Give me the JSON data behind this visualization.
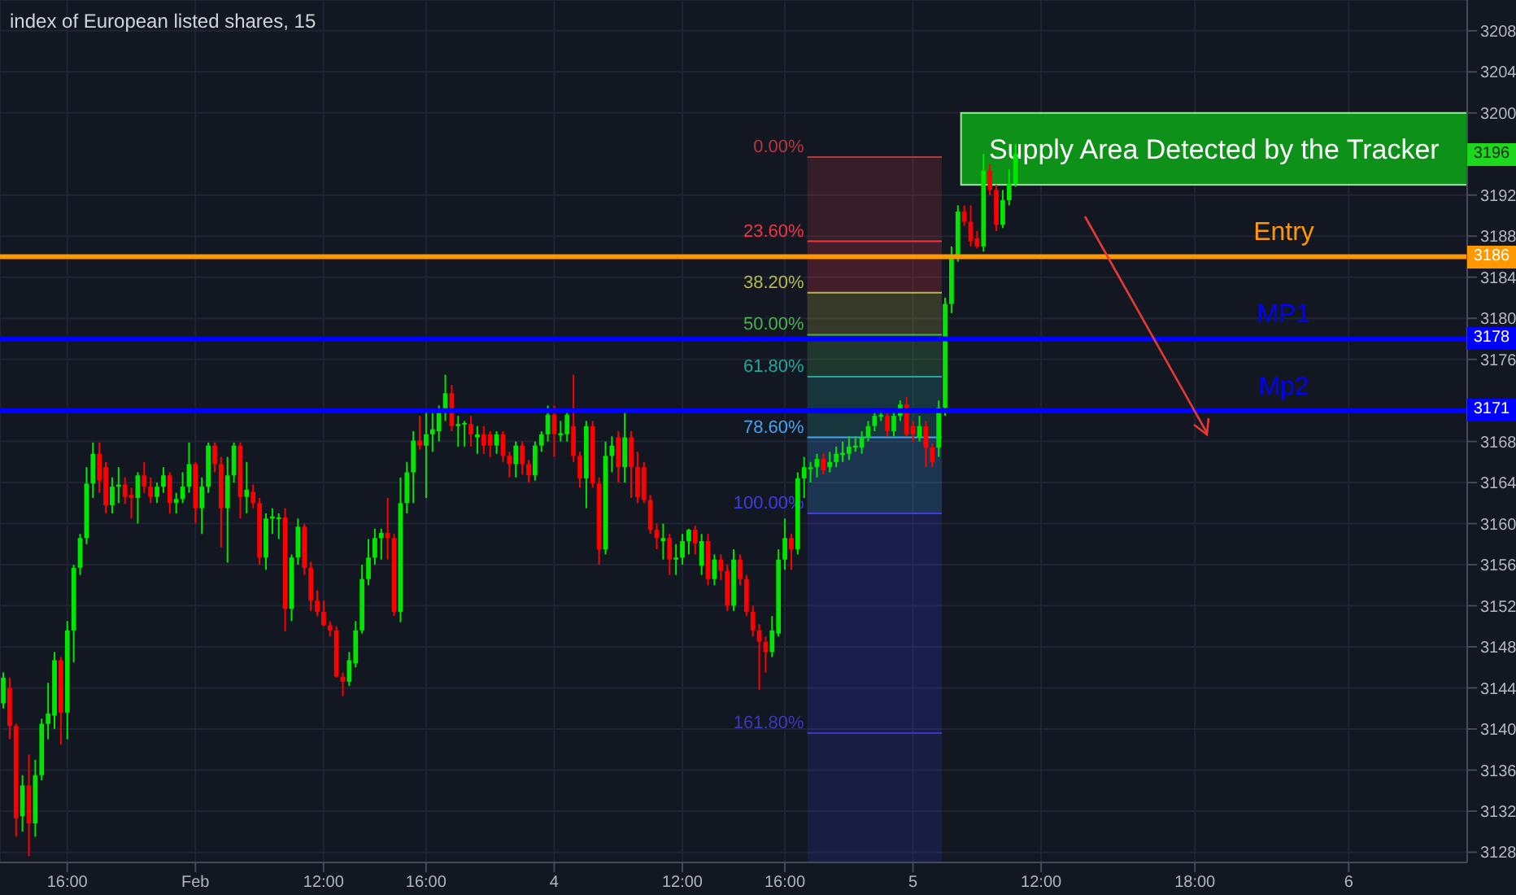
{
  "chart_data": {
    "type": "candlestick",
    "title": "index of European listed shares, 15",
    "categories": [
      null,
      null,
      null,
      null,
      null,
      null,
      null,
      null,
      null,
      null,
      "16:00",
      null,
      null,
      null,
      null,
      null,
      null,
      null,
      null,
      null,
      null,
      null,
      null,
      null,
      null,
      null,
      null,
      null,
      null,
      null,
      "Feb",
      null,
      null,
      null,
      null,
      null,
      null,
      null,
      null,
      null,
      null,
      null,
      null,
      null,
      null,
      null,
      null,
      null,
      null,
      null,
      "12:00",
      null,
      null,
      null,
      null,
      null,
      null,
      null,
      null,
      null,
      null,
      null,
      null,
      null,
      null,
      null,
      "16:00",
      null,
      null,
      null,
      null,
      null,
      null,
      null,
      null,
      null,
      null,
      null,
      null,
      null,
      null,
      null,
      null,
      null,
      null,
      null,
      "4",
      null,
      null,
      null,
      null,
      null,
      null,
      null,
      null,
      null,
      null,
      null,
      null,
      null,
      null,
      null,
      null,
      null,
      null,
      null,
      "12:00",
      null,
      null,
      null,
      null,
      null,
      null,
      null,
      null,
      null,
      null,
      null,
      null,
      null,
      null,
      null,
      "16:00",
      null,
      null,
      null,
      null,
      null,
      null,
      null,
      null,
      null,
      null,
      null,
      null,
      null,
      null,
      null,
      null,
      null,
      null,
      null,
      "5",
      null,
      null,
      null,
      null,
      null,
      null,
      null,
      null,
      null,
      null,
      null,
      null,
      null,
      null,
      null,
      null,
      null,
      null,
      null,
      "12:00",
      null,
      null,
      null,
      null,
      null,
      null,
      null,
      null,
      null,
      null,
      null,
      null,
      null,
      null,
      null,
      null,
      null,
      null,
      null,
      null,
      null,
      null,
      null,
      "18:00",
      null,
      null,
      null,
      null,
      null,
      null,
      null,
      null,
      null,
      null,
      null,
      null,
      null,
      null,
      null,
      null,
      null,
      null,
      null,
      null,
      null,
      null,
      null,
      "6",
      null,
      null,
      null,
      null,
      null,
      null,
      null,
      null,
      null,
      null,
      null,
      null,
      null,
      null,
      null,
      null,
      null,
      null
    ],
    "ohlc": [
      [
        3142.5,
        3145.5,
        3142,
        3145
      ],
      [
        3144,
        3145,
        3139,
        3140.3
      ],
      [
        3140.3,
        3140.5,
        3129.5,
        3131.3
      ],
      [
        3131.5,
        3135.5,
        3130,
        3134.5
      ],
      [
        3134.5,
        3137.5,
        3127.6,
        3130.8
      ],
      [
        3130.8,
        3137,
        3129.5,
        3135.5
      ],
      [
        3135.5,
        3141,
        3135,
        3140.5
      ],
      [
        3140.5,
        3144.5,
        3139,
        3141.5
      ],
      [
        3141.3,
        3147.5,
        3140,
        3146.7
      ],
      [
        3146.7,
        3147,
        3138.5,
        3141.6
      ],
      [
        3141.6,
        3150.5,
        3139,
        3149.6
      ],
      [
        3149.6,
        3156,
        3146.5,
        3155.7
      ],
      [
        3155.7,
        3159,
        3155,
        3158.6
      ],
      [
        3158.6,
        3165.5,
        3158,
        3163.9
      ],
      [
        3163.9,
        3167.9,
        3162.5,
        3166.8
      ],
      [
        3166.8,
        3167.9,
        3163,
        3164.2
      ],
      [
        3165.5,
        3166,
        3161,
        3161.8
      ],
      [
        3161.8,
        3164.5,
        3161,
        3163.6
      ],
      [
        3163.6,
        3165.5,
        3162,
        3163.8
      ],
      [
        3163.8,
        3164.5,
        3161.9,
        3162.6
      ],
      [
        3162.8,
        3163.5,
        3160.5,
        3162.5
      ],
      [
        3162.5,
        3165,
        3160,
        3164.7
      ],
      [
        3164.7,
        3166,
        3163,
        3163.6
      ],
      [
        3163.6,
        3164.5,
        3162,
        3162.6
      ],
      [
        3162.6,
        3164,
        3162,
        3163.6
      ],
      [
        3163.6,
        3165.5,
        3163,
        3164.7
      ],
      [
        3164.7,
        3165,
        3161,
        3162
      ],
      [
        3162,
        3163,
        3161,
        3162.4
      ],
      [
        3162.4,
        3165,
        3162,
        3163.6
      ],
      [
        3163.6,
        3167.9,
        3163,
        3165.8
      ],
      [
        3165.8,
        3166,
        3160,
        3161.5
      ],
      [
        3161.5,
        3164.5,
        3159,
        3163.6
      ],
      [
        3163.6,
        3167.9,
        3163,
        3167.6
      ],
      [
        3167.6,
        3167.9,
        3165,
        3165.8
      ],
      [
        3165.8,
        3166.5,
        3157.7,
        3161.5
      ],
      [
        3161.5,
        3166.5,
        3156.2,
        3164.7
      ],
      [
        3164.7,
        3167.9,
        3164,
        3167.6
      ],
      [
        3167.6,
        3167.9,
        3160.5,
        3162.6
      ],
      [
        3162.6,
        3166,
        3161,
        3163.3
      ],
      [
        3163.1,
        3163.8,
        3161.5,
        3162
      ],
      [
        3162,
        3162.5,
        3156,
        3156.7
      ],
      [
        3156.7,
        3161,
        3155.5,
        3160.5
      ],
      [
        3160.5,
        3161.5,
        3159,
        3160.7
      ],
      [
        3160.5,
        3161,
        3158.5,
        3160.6
      ],
      [
        3160.6,
        3161.5,
        3149.5,
        3151.7
      ],
      [
        3151.7,
        3157,
        3150.5,
        3156.7
      ],
      [
        3156.7,
        3160.5,
        3156,
        3159.7
      ],
      [
        3159.7,
        3160,
        3155,
        3155.7
      ],
      [
        3155.7,
        3156.3,
        3151.5,
        3152.5
      ],
      [
        3152.5,
        3153.5,
        3151,
        3151.4
      ],
      [
        3151.4,
        3152.5,
        3150,
        3150.1
      ],
      [
        3150.1,
        3150.5,
        3149,
        3149.6
      ],
      [
        3149.6,
        3150,
        3145,
        3145.1
      ],
      [
        3145.1,
        3145.5,
        3143.2,
        3144.6
      ],
      [
        3144.6,
        3147.5,
        3144.2,
        3146.7
      ],
      [
        3146.4,
        3150.5,
        3146,
        3149.6
      ],
      [
        3149.6,
        3156,
        3149.3,
        3154.6
      ],
      [
        3154.6,
        3158.5,
        3154,
        3156.7
      ],
      [
        3156.7,
        3159.5,
        3156,
        3158.6
      ],
      [
        3158.6,
        3159.5,
        3156.5,
        3159.1
      ],
      [
        3159.1,
        3162.5,
        3156.5,
        3158.6
      ],
      [
        3158.6,
        3159,
        3151,
        3151.4
      ],
      [
        3151.4,
        3164.5,
        3150.4,
        3162
      ],
      [
        3162,
        3166,
        3161,
        3165
      ],
      [
        3165,
        3169,
        3162,
        3168.1
      ],
      [
        3168.1,
        3170.5,
        3167.2,
        3167.6
      ],
      [
        3167.6,
        3171,
        3162.5,
        3168.7
      ],
      [
        3168.7,
        3171,
        3167,
        3169.2
      ],
      [
        3169,
        3171.5,
        3168,
        3170.8
      ],
      [
        3170.8,
        3174.5,
        3170,
        3172.7
      ],
      [
        3172.7,
        3173.5,
        3169,
        3169.5
      ],
      [
        3169.5,
        3170.5,
        3167.5,
        3169.7
      ],
      [
        3169.7,
        3170,
        3167.5,
        3169.8
      ],
      [
        3169.7,
        3170.5,
        3167.5,
        3168.7
      ],
      [
        3168.4,
        3169.5,
        3166.8,
        3168.7
      ],
      [
        3168.7,
        3169.5,
        3166.8,
        3167.6
      ],
      [
        3168.7,
        3169,
        3166.5,
        3167.6
      ],
      [
        3167.6,
        3169,
        3166.8,
        3168.7
      ],
      [
        3168.7,
        3169,
        3166,
        3166.6
      ],
      [
        3166.6,
        3167,
        3164.5,
        3165.8
      ],
      [
        3165.8,
        3168,
        3164.5,
        3167.6
      ],
      [
        3167.6,
        3168,
        3164.8,
        3165.8
      ],
      [
        3165.8,
        3166.2,
        3164,
        3164.7
      ],
      [
        3164.7,
        3168,
        3164.2,
        3167.6
      ],
      [
        3167.6,
        3169,
        3167,
        3168.7
      ],
      [
        3168.7,
        3171.5,
        3168,
        3170.6
      ],
      [
        3170.6,
        3171.5,
        3166.5,
        3168.7
      ],
      [
        3168.6,
        3170,
        3168,
        3168.8
      ],
      [
        3168.7,
        3171,
        3168,
        3170.6
      ],
      [
        3169.5,
        3174.5,
        3166,
        3166.6
      ],
      [
        3166.6,
        3167,
        3163.5,
        3164.4
      ],
      [
        3164.4,
        3170,
        3161.5,
        3169.5
      ],
      [
        3169.5,
        3170,
        3163.5,
        3163.9
      ],
      [
        3163.9,
        3164.5,
        3156,
        3157.5
      ],
      [
        3157.5,
        3168,
        3157,
        3166.6
      ],
      [
        3166.6,
        3168.5,
        3165,
        3167.6
      ],
      [
        3168.4,
        3169,
        3164,
        3165.5
      ],
      [
        3165.5,
        3171,
        3164,
        3168.4
      ],
      [
        3168.4,
        3169,
        3162.5,
        3165.5
      ],
      [
        3165.5,
        3167,
        3162,
        3162.6
      ],
      [
        3165.5,
        3166,
        3162,
        3162.3
      ],
      [
        3162.3,
        3162.8,
        3159,
        3159.4
      ],
      [
        3159.4,
        3160,
        3157.5,
        3158.6
      ],
      [
        3158.3,
        3160,
        3156.5,
        3158.6
      ],
      [
        3158.6,
        3159,
        3155,
        3156.5
      ],
      [
        3156.5,
        3158,
        3155,
        3156.7
      ],
      [
        3156.7,
        3159,
        3156,
        3158.3
      ],
      [
        3158.3,
        3159.5,
        3157,
        3159.4
      ],
      [
        3159.4,
        3159.8,
        3157,
        3158.1
      ],
      [
        3155.9,
        3159,
        3155,
        3158.3
      ],
      [
        3158.3,
        3159,
        3154,
        3154.6
      ],
      [
        3154.6,
        3157,
        3154,
        3156.5
      ],
      [
        3156.5,
        3157,
        3154.5,
        3155.4
      ],
      [
        3155.4,
        3156,
        3151.5,
        3152
      ],
      [
        3152,
        3157.5,
        3151.5,
        3156.5
      ],
      [
        3156.5,
        3157,
        3154,
        3154.6
      ],
      [
        3154.6,
        3155,
        3151,
        3151.4
      ],
      [
        3151.4,
        3152,
        3149,
        3149.6
      ],
      [
        3149.6,
        3150.2,
        3143.8,
        3148.5
      ],
      [
        3148.5,
        3149,
        3145.5,
        3147.5
      ],
      [
        3147.5,
        3151,
        3147,
        3149.6
      ],
      [
        3149.3,
        3157.5,
        3149,
        3156.5
      ],
      [
        3156.5,
        3160.5,
        3155.5,
        3158.6
      ],
      [
        3158.6,
        3159,
        3155.5,
        3157.5
      ],
      [
        3157.5,
        3165,
        3157,
        3164.4
      ],
      [
        3164.4,
        3166.5,
        3162.5,
        3165.5
      ],
      [
        3165.3,
        3166,
        3164,
        3165.5
      ],
      [
        3165.5,
        3166.8,
        3164.5,
        3166.3
      ],
      [
        3166.3,
        3166.8,
        3164.8,
        3165.2
      ],
      [
        3165.5,
        3167,
        3165,
        3166
      ],
      [
        3166,
        3167.5,
        3165.5,
        3166.8
      ],
      [
        3166.7,
        3168,
        3166,
        3166.9
      ],
      [
        3166.8,
        3168.5,
        3166.2,
        3167.5
      ],
      [
        3167.4,
        3168.5,
        3167,
        3167.6
      ],
      [
        3167.4,
        3169,
        3166.8,
        3168.4
      ],
      [
        3168.4,
        3170,
        3168,
        3169.5
      ],
      [
        3169.5,
        3171,
        3169,
        3170.5
      ],
      [
        3170.4,
        3171,
        3170,
        3170.6
      ],
      [
        3170.5,
        3171,
        3168.5,
        3169
      ],
      [
        3169,
        3171,
        3168.5,
        3170.5
      ],
      [
        3170.5,
        3172,
        3170,
        3171.6
      ],
      [
        3171.6,
        3172.3,
        3168.5,
        3168.7
      ],
      [
        3169.5,
        3170,
        3168,
        3168.7
      ],
      [
        3168.4,
        3170.5,
        3168,
        3169.5
      ],
      [
        3169.5,
        3170,
        3165.5,
        3167.4
      ],
      [
        3167.4,
        3167.8,
        3165.5,
        3166
      ],
      [
        3167.4,
        3172,
        3166.5,
        3171.3
      ],
      [
        3171.3,
        3182,
        3170.5,
        3181.4
      ],
      [
        3181.4,
        3187,
        3180.5,
        3186.2
      ],
      [
        3186.2,
        3191,
        3185.5,
        3190.4
      ],
      [
        3190.4,
        3191,
        3189,
        3189.4
      ],
      [
        3189.4,
        3191,
        3187,
        3187.5
      ],
      [
        3187.8,
        3188.5,
        3186.8,
        3187
      ],
      [
        3187,
        3196,
        3186.5,
        3194.4
      ],
      [
        3194.4,
        3195,
        3192,
        3192.5
      ],
      [
        3192.5,
        3193,
        3188.5,
        3189.1
      ],
      [
        3189.1,
        3192.5,
        3188.8,
        3191.5
      ],
      [
        3191.5,
        3194.5,
        3191,
        3193.1
      ],
      [
        3193.1,
        3197,
        3192.8,
        3196
      ],
      null,
      null,
      null,
      null,
      null,
      null,
      null,
      null,
      null,
      null,
      null,
      null,
      null,
      null,
      null,
      null,
      null,
      null,
      null,
      null,
      null,
      null,
      null,
      null,
      null,
      null,
      null,
      null,
      null,
      null,
      null,
      null,
      null,
      null,
      null,
      null,
      null,
      null,
      null,
      null,
      null,
      null,
      null,
      null,
      null,
      null,
      null,
      null,
      null,
      null,
      null,
      null,
      null,
      null,
      null,
      null,
      null,
      null,
      null,
      null,
      null,
      null,
      null,
      null,
      null,
      null,
      null,
      null,
      null,
      null
    ],
    "colors": [
      "#00e600",
      "#ff0000",
      "#ff0000",
      "#00e600",
      "#ff0000",
      "#00e600",
      "#00e600",
      "#00e600",
      "#00e600",
      "#ff0000",
      "#00e600",
      "#00e600",
      "#00e600",
      "#00e600",
      "#00e600",
      "#ff0000",
      "#ff0000",
      "#00e600",
      "#00e600",
      "#ff0000",
      "#ff0000",
      "#00e600",
      "#ff0000",
      "#ff0000",
      "#00e600",
      "#00e600",
      "#ff0000",
      "#00e600",
      "#00e600",
      "#00e600",
      "#ff0000",
      "#00e600",
      "#00e600",
      "#ff0000",
      "#ff0000",
      "#00e600",
      "#00e600",
      "#ff0000",
      "#00e600",
      "#ff0000",
      "#ff0000",
      "#00e600",
      "#00e600",
      "#00e600",
      "#ff0000",
      "#00e600",
      "#00e600",
      "#ff0000",
      "#ff0000",
      "#ff0000",
      "#ff0000",
      "#ff0000",
      "#ff0000",
      "#ff0000",
      "#00e600",
      "#00e600",
      "#00e600",
      "#00e600",
      "#00e600",
      "#00e600",
      "#ff0000",
      "#ff0000",
      "#00e600",
      "#00e600",
      "#00e600",
      "#ff0000",
      "#00e600",
      "#00e600",
      "#00e600",
      "#00e600",
      "#ff0000",
      "#00e600",
      "#00e600",
      "#ff0000",
      "#00e600",
      "#ff0000",
      "#ff0000",
      "#00e600",
      "#ff0000",
      "#ff0000",
      "#00e600",
      "#ff0000",
      "#ff0000",
      "#00e600",
      "#00e600",
      "#00e600",
      "#ff0000",
      "#00e600",
      "#00e600",
      "#ff0000",
      "#ff0000",
      "#00e600",
      "#ff0000",
      "#ff0000",
      "#00e600",
      "#00e600",
      "#ff0000",
      "#00e600",
      "#ff0000",
      "#ff0000",
      "#ff0000",
      "#ff0000",
      "#ff0000",
      "#00e600",
      "#ff0000",
      "#00e600",
      "#00e600",
      "#00e600",
      "#ff0000",
      "#00e600",
      "#ff0000",
      "#00e600",
      "#ff0000",
      "#ff0000",
      "#00e600",
      "#ff0000",
      "#ff0000",
      "#ff0000",
      "#ff0000",
      "#ff0000",
      "#00e600",
      "#00e600",
      "#00e600",
      "#ff0000",
      "#00e600",
      "#00e600",
      "#00e600",
      "#00e600",
      "#ff0000",
      "#00e600",
      "#00e600",
      "#00e600",
      "#00e600",
      "#00e600",
      "#00e600",
      "#00e600",
      "#00e600",
      "#00e600",
      "#ff0000",
      "#00e600",
      "#00e600",
      "#ff0000",
      "#ff0000",
      "#00e600",
      "#ff0000",
      "#ff0000",
      "#00e600",
      "#00e600",
      "#00e600",
      "#00e600",
      "#ff0000",
      "#ff0000",
      "#ff0000",
      "#00e600",
      "#ff0000",
      "#ff0000",
      "#00e600",
      "#00e600",
      "#00e600",
      null,
      null,
      null,
      null,
      null,
      null,
      null,
      null,
      null,
      null,
      null,
      null,
      null,
      null,
      null,
      null,
      null,
      null,
      null,
      null,
      null,
      null,
      null,
      null,
      null,
      null,
      null,
      null,
      null,
      null,
      null,
      null,
      null,
      null,
      null,
      null,
      null,
      null,
      null,
      null,
      null,
      null,
      null,
      null,
      null,
      null,
      null,
      null,
      null,
      null,
      null,
      null,
      null,
      null,
      null,
      null,
      null,
      null,
      null,
      null,
      null,
      null,
      null,
      null,
      null,
      null,
      null,
      null,
      null,
      null
    ],
    "ylim": [
      3127,
      3211
    ],
    "yticks": [
      3128,
      3132,
      3136,
      3140,
      3144,
      3148,
      3152,
      3156,
      3160,
      3164,
      3168,
      3176,
      3180,
      3184,
      3188,
      3192,
      3200,
      3204,
      3208
    ],
    "grid": true,
    "ref_lines": [
      {
        "axis": "y",
        "value": 3186,
        "label": "Entry",
        "color": "#ff9800"
      },
      {
        "axis": "y",
        "value": 3178,
        "label": "MP1",
        "color": "#0000ff"
      },
      {
        "axis": "y",
        "value": 3171,
        "label": "Mp2",
        "color": "#0000ff"
      }
    ],
    "bands": [
      {
        "axis": "y",
        "from": 3193,
        "to": 3200,
        "label": "Supply Area Detected by the Tracker",
        "color": "#0e9e17"
      },
      {
        "axis": "y",
        "from": 3187.5,
        "to": 3195.7,
        "label": "0.00%",
        "color": "#b0393f"
      },
      {
        "axis": "y",
        "from": 3182.5,
        "to": 3187.5,
        "label": "23.60%",
        "color": "#f23645"
      },
      {
        "axis": "y",
        "from": 3178.4,
        "to": 3182.5,
        "label": "38.20%",
        "color": "#b5b84a"
      },
      {
        "axis": "y",
        "from": 3174.3,
        "to": 3178.4,
        "label": "50.00%",
        "color": "#4caf50"
      },
      {
        "axis": "y",
        "from": 3168.4,
        "to": 3174.3,
        "label": "61.80%",
        "color": "#26a69a"
      },
      {
        "axis": "y",
        "from": 3161,
        "to": 3168.4,
        "label": "78.60%",
        "color": "#42a5f5"
      },
      {
        "axis": "y",
        "from": 3139.6,
        "to": 3161,
        "label": "100.00%",
        "color": "#3d3ddb"
      },
      {
        "axis": "y",
        "from": 3127,
        "to": 3139.6,
        "label": "161.80%",
        "color": "#3838b8"
      }
    ],
    "annotations": [
      {
        "text": "3196",
        "y": 3196
      },
      {
        "text": "3186",
        "y": 3186
      },
      {
        "text": "3178",
        "y": 3178
      },
      {
        "text": "3171",
        "y": 3171
      }
    ]
  }
}
